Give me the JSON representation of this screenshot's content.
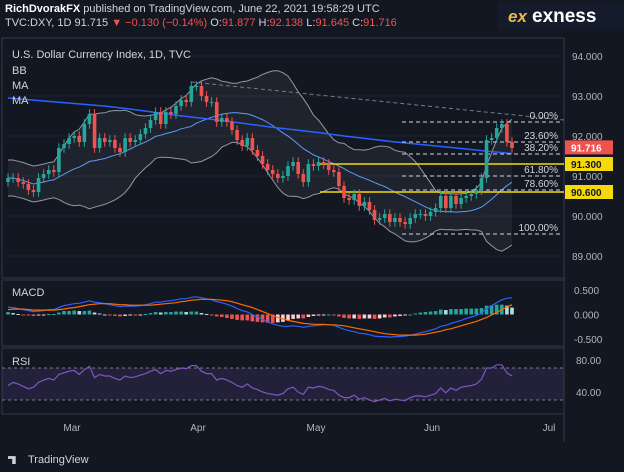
{
  "header": {
    "author": "RichDvorakFX",
    "published_text": "published on TradingView.com, June 22, 2021 19:58:29 UTC",
    "symbol_line": "TVC:DXY, 1D",
    "last": "91.715",
    "arrow": "▼",
    "change": "−0.130 (−0.14%)",
    "o_label": "O:",
    "o": "91.877",
    "h_label": "H:",
    "h": "92.138",
    "l_label": "L:",
    "l": "91.645",
    "c_label": "C:",
    "c": "91.716"
  },
  "brand": {
    "mark": "ex",
    "name": "exness"
  },
  "chart": {
    "title": "U.S. Dollar Currency Index, 1D, TVC",
    "indicators": [
      "BB",
      "MA",
      "MA"
    ],
    "price_ticks": [
      "94.000",
      "93.000",
      "92.000",
      "91.000",
      "90.000",
      "89.000"
    ],
    "fib_levels": [
      {
        "label": "0.00%",
        "value": "92.35"
      },
      {
        "label": "23.60%",
        "value": "91.85"
      },
      {
        "label": "38.20%",
        "value": "91.55"
      },
      {
        "label": "61.80%",
        "value": "91.00"
      },
      {
        "label": "78.60%",
        "value": "90.65"
      },
      {
        "label": "100.00%",
        "value": "89.55"
      }
    ],
    "price_badges": [
      {
        "text": "91.716",
        "color": "#ef5350"
      },
      {
        "text": "91.300",
        "color": "#f5d90a"
      },
      {
        "text": "90.600",
        "color": "#f5d90a"
      }
    ]
  },
  "macd": {
    "title": "MACD",
    "ticks": [
      "0.500",
      "0.000",
      "-0.500"
    ]
  },
  "rsi": {
    "title": "RSI",
    "ticks": [
      "80.00",
      "40.00"
    ]
  },
  "x_axis": {
    "labels": [
      "Mar",
      "Apr",
      "May",
      "Jun",
      "Jul"
    ]
  },
  "footer": {
    "brand": "TradingView"
  },
  "colors": {
    "background": "#131722",
    "up": "#26a69a",
    "down": "#ef5350",
    "fib": "#f5d90a",
    "ma_blue": "#2962ff",
    "rsi": "#7e57c2"
  },
  "chart_data": {
    "type": "candlestick",
    "close": [
      90.95,
      90.95,
      90.85,
      90.8,
      90.65,
      90.6,
      90.95,
      91.05,
      91.15,
      91.1,
      91.7,
      91.8,
      91.95,
      92.0,
      91.85,
      92.3,
      92.55,
      91.7,
      91.95,
      91.85,
      91.9,
      91.7,
      91.6,
      91.95,
      91.85,
      91.9,
      92.05,
      92.2,
      92.4,
      92.6,
      92.3,
      92.6,
      92.55,
      92.75,
      92.9,
      92.85,
      93.25,
      93.25,
      93.0,
      92.85,
      92.85,
      92.35,
      92.45,
      92.35,
      92.15,
      91.9,
      91.75,
      91.95,
      91.65,
      91.5,
      91.3,
      91.15,
      91.05,
      90.95,
      91.0,
      91.25,
      91.35,
      91.05,
      90.85,
      91.3,
      91.25,
      91.35,
      91.3,
      91.15,
      91.1,
      90.75,
      90.45,
      90.4,
      90.55,
      90.25,
      90.35,
      90.15,
      89.9,
      89.95,
      90.05,
      89.85,
      89.95,
      89.85,
      89.8,
      89.95,
      90.05,
      90.05,
      90.0,
      90.1,
      90.2,
      90.5,
      90.2,
      90.5,
      90.3,
      90.45,
      90.5,
      90.55,
      90.65,
      90.95,
      91.9,
      91.95,
      92.2,
      92.3,
      91.85,
      91.7
    ],
    "macd": [
      0.15,
      0.14,
      0.12,
      0.1,
      0.08,
      0.06,
      0.07,
      0.08,
      0.1,
      0.1,
      0.14,
      0.18,
      0.2,
      0.22,
      0.23,
      0.25,
      0.28,
      0.25,
      0.24,
      0.22,
      0.2,
      0.18,
      0.16,
      0.17,
      0.17,
      0.17,
      0.18,
      0.2,
      0.22,
      0.25,
      0.25,
      0.27,
      0.28,
      0.3,
      0.32,
      0.32,
      0.35,
      0.36,
      0.34,
      0.32,
      0.3,
      0.26,
      0.24,
      0.21,
      0.17,
      0.12,
      0.08,
      0.05,
      0.0,
      -0.05,
      -0.1,
      -0.15,
      -0.19,
      -0.22,
      -0.24,
      -0.24,
      -0.23,
      -0.24,
      -0.26,
      -0.24,
      -0.23,
      -0.22,
      -0.21,
      -0.21,
      -0.22,
      -0.26,
      -0.3,
      -0.33,
      -0.35,
      -0.38,
      -0.39,
      -0.41,
      -0.44,
      -0.45,
      -0.45,
      -0.46,
      -0.45,
      -0.45,
      -0.44,
      -0.42,
      -0.4,
      -0.37,
      -0.35,
      -0.32,
      -0.29,
      -0.24,
      -0.22,
      -0.18,
      -0.15,
      -0.12,
      -0.08,
      -0.05,
      -0.02,
      0.03,
      0.12,
      0.18,
      0.24,
      0.3,
      0.33,
      0.34
    ],
    "signal": [
      0.1,
      0.11,
      0.11,
      0.11,
      0.1,
      0.09,
      0.09,
      0.09,
      0.09,
      0.09,
      0.1,
      0.11,
      0.13,
      0.14,
      0.16,
      0.18,
      0.2,
      0.21,
      0.22,
      0.22,
      0.22,
      0.21,
      0.2,
      0.2,
      0.19,
      0.19,
      0.19,
      0.19,
      0.19,
      0.2,
      0.21,
      0.22,
      0.23,
      0.24,
      0.26,
      0.27,
      0.29,
      0.3,
      0.31,
      0.31,
      0.31,
      0.3,
      0.29,
      0.28,
      0.26,
      0.23,
      0.2,
      0.17,
      0.14,
      0.1,
      0.06,
      0.02,
      -0.02,
      -0.06,
      -0.09,
      -0.12,
      -0.14,
      -0.16,
      -0.18,
      -0.19,
      -0.2,
      -0.2,
      -0.2,
      -0.21,
      -0.21,
      -0.22,
      -0.23,
      -0.25,
      -0.27,
      -0.29,
      -0.31,
      -0.33,
      -0.35,
      -0.37,
      -0.39,
      -0.4,
      -0.41,
      -0.42,
      -0.42,
      -0.42,
      -0.42,
      -0.41,
      -0.4,
      -0.38,
      -0.36,
      -0.34,
      -0.31,
      -0.29,
      -0.26,
      -0.23,
      -0.2,
      -0.17,
      -0.14,
      -0.1,
      -0.06,
      -0.01,
      0.04,
      0.1,
      0.15,
      0.2
    ],
    "rsi": [
      48,
      52,
      50,
      47,
      44,
      46,
      52,
      55,
      57,
      55,
      62,
      64,
      66,
      67,
      62,
      68,
      72,
      58,
      62,
      60,
      60,
      57,
      55,
      60,
      58,
      59,
      61,
      63,
      66,
      68,
      63,
      67,
      66,
      68,
      70,
      69,
      73,
      73,
      66,
      63,
      63,
      55,
      57,
      55,
      52,
      48,
      46,
      50,
      45,
      43,
      40,
      38,
      37,
      36,
      38,
      44,
      46,
      40,
      37,
      46,
      45,
      47,
      46,
      43,
      42,
      36,
      33,
      33,
      36,
      31,
      33,
      30,
      28,
      30,
      32,
      29,
      31,
      30,
      29,
      33,
      35,
      35,
      34,
      36,
      38,
      45,
      39,
      45,
      42,
      46,
      47,
      48,
      50,
      56,
      70,
      70,
      74,
      74,
      64,
      60
    ],
    "ma_long": [
      92.95,
      92.9,
      92.85,
      92.8,
      92.75,
      92.68,
      92.6,
      92.52,
      92.45,
      92.38,
      92.3,
      92.22,
      92.15,
      92.08,
      92.0,
      91.93,
      91.86,
      91.8,
      91.74,
      91.68,
      91.62,
      91.56
    ],
    "ylim": [
      88.7,
      94.2
    ]
  }
}
